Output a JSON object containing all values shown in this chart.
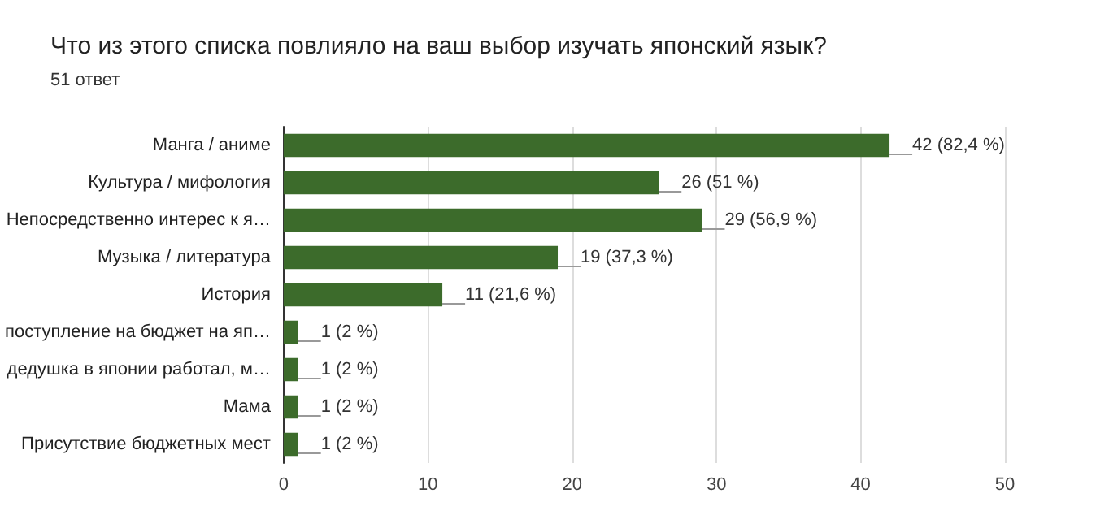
{
  "chart_data": {
    "type": "bar",
    "orientation": "horizontal",
    "title": "Что из этого списка повлияло на ваш выбор изучать японский язык?",
    "subtitle": "51 ответ",
    "categories": [
      "Манга / аниме",
      "Культура / мифология",
      "Непосредственно интерес к я…",
      "Музыка / литература",
      "История",
      "поступление на бюджет на яп…",
      "дедушка в японии работал, м…",
      "Мама",
      "Присутствие бюджетных мест"
    ],
    "values": [
      42,
      26,
      29,
      19,
      11,
      1,
      1,
      1,
      1
    ],
    "value_labels": [
      "42 (82,4 %)",
      "26 (51 %)",
      "29 (56,9 %)",
      "19 (37,3 %)",
      "11 (21,6 %)",
      "1 (2 %)",
      "1 (2 %)",
      "1 (2 %)",
      "1 (2 %)"
    ],
    "color": "#3c6b2b",
    "xlim": [
      0,
      50
    ],
    "xticks": [
      0,
      10,
      20,
      30,
      40,
      50
    ],
    "grid": "x"
  }
}
